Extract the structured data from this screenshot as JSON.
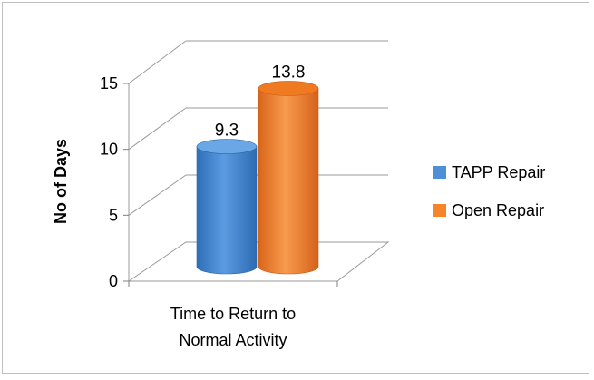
{
  "chart_data": {
    "type": "bar",
    "style": "3d-cylinder",
    "categories": [
      "Time to Return to Normal Activity"
    ],
    "category_label_lines": [
      "Time to Return to",
      "Normal Activity"
    ],
    "series": [
      {
        "name": "TAPP Repair",
        "values": [
          9.3
        ],
        "color": "#4f8fd6",
        "data_label": "9.3"
      },
      {
        "name": "Open Repair",
        "values": [
          13.8
        ],
        "color": "#f5842b",
        "data_label": "13.8"
      }
    ],
    "ylabel": "No of Days",
    "ylim": [
      0,
      15
    ],
    "y_ticks": [
      0,
      5,
      10,
      15
    ],
    "y_tick_labels": [
      "0",
      "5",
      "10",
      "15"
    ],
    "grid": true,
    "legend_position": "right"
  }
}
